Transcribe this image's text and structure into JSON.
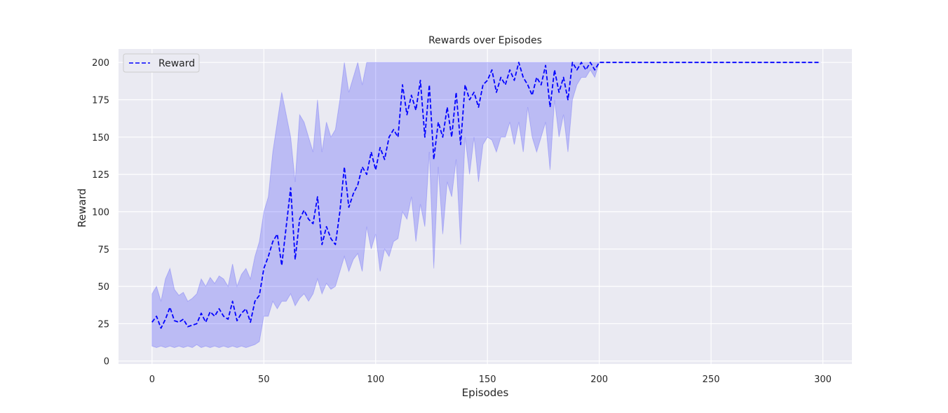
{
  "chart_data": {
    "type": "line",
    "title": "Rewards over Episodes",
    "xlabel": "Episodes",
    "ylabel": "Reward",
    "xlim": [
      -15,
      313
    ],
    "ylim": [
      -2,
      209
    ],
    "x_ticks": [
      0,
      50,
      100,
      150,
      200,
      250,
      300
    ],
    "y_ticks": [
      0,
      25,
      50,
      75,
      100,
      125,
      150,
      175,
      200
    ],
    "grid": true,
    "legend": {
      "position": "top-left",
      "entries": [
        "Reward"
      ]
    },
    "colors": {
      "line": "#0000ff",
      "band": "#0000ff",
      "background": "#eaeaf2",
      "grid": "#ffffff"
    },
    "series": [
      {
        "name": "Reward",
        "style": "dashed",
        "x": [
          0,
          2,
          4,
          6,
          8,
          10,
          12,
          14,
          16,
          18,
          20,
          22,
          24,
          26,
          28,
          30,
          32,
          34,
          36,
          38,
          40,
          42,
          44,
          46,
          48,
          50,
          52,
          54,
          56,
          58,
          60,
          62,
          64,
          66,
          68,
          70,
          72,
          74,
          76,
          78,
          80,
          82,
          84,
          86,
          88,
          90,
          92,
          94,
          96,
          98,
          100,
          102,
          104,
          106,
          108,
          110,
          112,
          114,
          116,
          118,
          120,
          122,
          124,
          126,
          128,
          130,
          132,
          134,
          136,
          138,
          140,
          142,
          144,
          146,
          148,
          150,
          152,
          154,
          156,
          158,
          160,
          162,
          164,
          166,
          168,
          170,
          172,
          174,
          176,
          178,
          180,
          182,
          184,
          186,
          188,
          190,
          192,
          194,
          196,
          198,
          200,
          202,
          250,
          299
        ],
        "y": [
          26,
          30,
          22,
          28,
          36,
          27,
          26,
          28,
          23,
          24,
          25,
          32,
          26,
          33,
          30,
          35,
          30,
          28,
          40,
          27,
          32,
          35,
          26,
          40,
          44,
          62,
          70,
          80,
          85,
          64,
          90,
          116,
          68,
          95,
          101,
          95,
          92,
          110,
          78,
          90,
          82,
          78,
          100,
          130,
          103,
          112,
          118,
          130,
          125,
          140,
          128,
          143,
          135,
          150,
          155,
          150,
          185,
          165,
          178,
          168,
          188,
          150,
          185,
          135,
          160,
          150,
          170,
          150,
          180,
          145,
          185,
          175,
          180,
          170,
          185,
          188,
          195,
          180,
          190,
          185,
          195,
          188,
          200,
          190,
          185,
          178,
          190,
          185,
          198,
          170,
          195,
          180,
          190,
          175,
          200,
          195,
          200,
          195,
          200,
          195,
          200,
          200,
          200,
          200
        ],
        "lower": [
          10,
          9,
          10,
          9,
          10,
          9,
          10,
          9,
          10,
          9,
          11,
          9,
          10,
          9,
          10,
          9,
          10,
          9,
          10,
          9,
          10,
          9,
          10,
          11,
          13,
          30,
          30,
          40,
          35,
          40,
          40,
          45,
          37,
          42,
          45,
          40,
          45,
          55,
          45,
          52,
          48,
          50,
          60,
          70,
          60,
          68,
          72,
          60,
          90,
          75,
          85,
          60,
          75,
          70,
          80,
          82,
          100,
          95,
          110,
          80,
          105,
          90,
          140,
          62,
          130,
          85,
          120,
          110,
          135,
          78,
          150,
          125,
          150,
          120,
          145,
          150,
          148,
          140,
          150,
          150,
          160,
          145,
          160,
          140,
          170,
          150,
          140,
          150,
          160,
          128,
          175,
          150,
          165,
          140,
          175,
          185,
          190,
          190,
          195,
          190,
          200,
          200,
          200,
          200
        ],
        "upper": [
          45,
          50,
          40,
          55,
          62,
          48,
          44,
          46,
          40,
          42,
          45,
          55,
          50,
          56,
          52,
          57,
          55,
          50,
          65,
          50,
          58,
          62,
          55,
          70,
          80,
          100,
          110,
          140,
          160,
          180,
          165,
          150,
          120,
          165,
          160,
          150,
          140,
          175,
          140,
          160,
          150,
          155,
          175,
          200,
          180,
          190,
          200,
          185,
          200,
          200,
          200,
          200,
          200,
          200,
          200,
          200,
          200,
          200,
          200,
          200,
          200,
          200,
          200,
          200,
          200,
          200,
          200,
          200,
          200,
          200,
          200,
          200,
          200,
          200,
          200,
          200,
          200,
          200,
          200,
          200,
          200,
          200,
          200,
          200,
          200,
          200,
          200,
          200,
          200,
          200,
          200,
          200,
          200,
          200,
          200,
          200,
          200,
          200,
          200,
          200,
          200,
          200,
          200,
          200
        ]
      }
    ]
  }
}
